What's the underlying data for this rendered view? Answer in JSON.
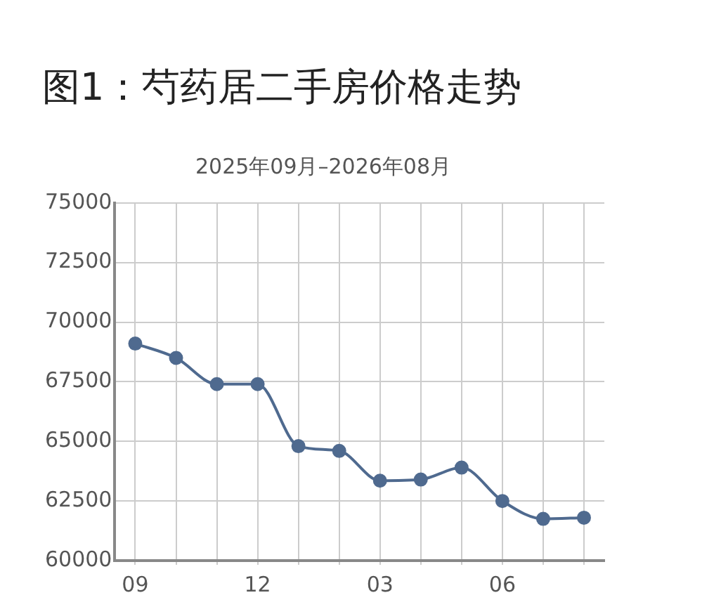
{
  "chart_data": {
    "type": "line",
    "title": "图1：芍药居二手房价格走势",
    "subtitle": "2025年09月–2026年08月",
    "categories": [
      "09",
      null,
      null,
      "12",
      null,
      null,
      "03",
      null,
      null,
      "06",
      null,
      null
    ],
    "series": [
      {
        "color": "#4f6a8f",
        "values": [
          69100,
          68500,
          67400,
          67400,
          64800,
          64600,
          63350,
          63400,
          63900,
          62500,
          61750,
          61800
        ]
      }
    ],
    "ylim": [
      60000,
      75000
    ],
    "yticks": [
      60000,
      62500,
      65000,
      67500,
      70000,
      72500,
      75000
    ],
    "grid": true,
    "legend": false,
    "marker": "circle",
    "line_style": "solid"
  }
}
